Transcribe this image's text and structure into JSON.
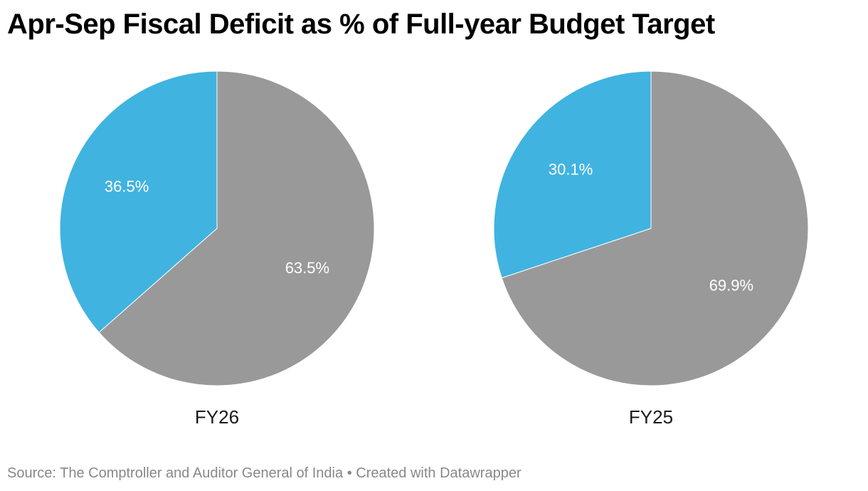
{
  "title": "Apr-Sep Fiscal Deficit as % of Full-year Budget Target",
  "footer": {
    "source": "Source: The Comptroller and Auditor General of India",
    "separator": "•",
    "credit": "Created with Datawrapper"
  },
  "colors": {
    "achieved": "#41b3e0",
    "remaining": "#999999"
  },
  "chart_data": [
    {
      "type": "pie",
      "title": "FY26",
      "slices": [
        {
          "value": 36.5,
          "label": "36.5%",
          "color": "#41b3e0"
        },
        {
          "value": 63.5,
          "label": "63.5%",
          "color": "#999999"
        }
      ]
    },
    {
      "type": "pie",
      "title": "FY25",
      "slices": [
        {
          "value": 30.1,
          "label": "30.1%",
          "color": "#41b3e0"
        },
        {
          "value": 69.9,
          "label": "69.9%",
          "color": "#999999"
        }
      ]
    }
  ]
}
